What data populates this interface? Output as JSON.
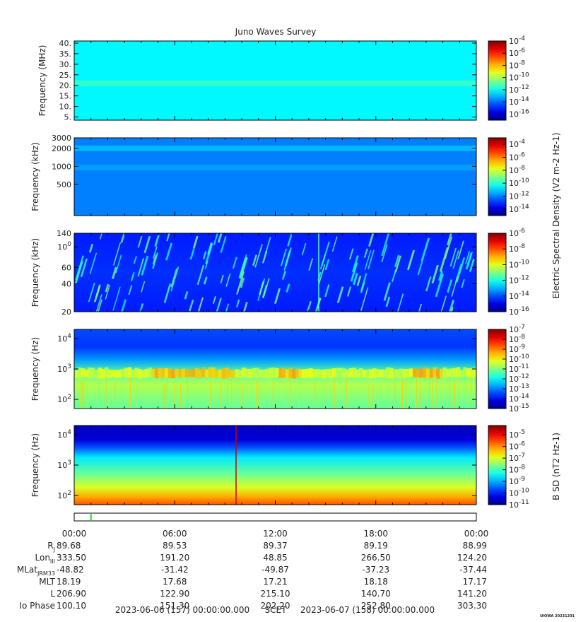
{
  "chart_data": {
    "title": "Juno Waves Survey",
    "type": "heatmap",
    "panels": [
      {
        "id": "hfr-high",
        "ylabel": "Frequency (MHz)",
        "yscale": "linear",
        "ylim": [
          3.5,
          41
        ],
        "yticks": [
          "5.",
          "10.",
          "15.",
          "20.",
          "25.",
          "30.",
          "35.",
          "40."
        ],
        "ytick_values": [
          5,
          10,
          15,
          20,
          25,
          30,
          35,
          40
        ],
        "colorbar": {
          "min_exp": -17,
          "max_exp": -4,
          "labels": [
            "10-4",
            "10-6",
            "10-8",
            "10-10",
            "10-12",
            "10-14",
            "10-16"
          ],
          "label_exps": [
            -4,
            -6,
            -8,
            -10,
            -12,
            -14,
            -16
          ]
        },
        "background_exp": -12.2,
        "bands": [
          {
            "freq": 21,
            "exp": -11.4
          }
        ]
      },
      {
        "id": "hfr-low",
        "ylabel": "Frequency (kHz)",
        "yscale": "log",
        "ylim": [
          150,
          3000
        ],
        "yticks": [
          "3000",
          "2000",
          "1000",
          "500"
        ],
        "ytick_values": [
          3000,
          2000,
          1000,
          500
        ],
        "colorbar": {
          "min_exp": -15,
          "max_exp": -3,
          "labels": [
            "10-4",
            "10-6",
            "10-8",
            "10-10",
            "10-12",
            "10-14"
          ],
          "label_exps": [
            -4,
            -6,
            -8,
            -10,
            -12,
            -14
          ]
        },
        "background_exp": -12.0,
        "bands": [
          {
            "freq": 2000,
            "exp": -11.3
          },
          {
            "freq": 950,
            "exp": -11.6
          }
        ]
      },
      {
        "id": "lfr-high",
        "ylabel": "Frequency (kHz)",
        "yscale": "log",
        "ylim": [
          20,
          140
        ],
        "yticks": [
          "140",
          "100",
          "60",
          "40",
          "20"
        ],
        "ytick_values": [
          140,
          100,
          60,
          40,
          20
        ],
        "colorbar": {
          "min_exp": -16,
          "max_exp": -6,
          "labels": [
            "10-6",
            "10-8",
            "10-10",
            "10-12",
            "10-14",
            "10-16"
          ],
          "label_exps": [
            -6,
            -8,
            -10,
            -12,
            -14,
            -16
          ]
        },
        "background_exp": -14.4,
        "bands": []
      },
      {
        "id": "lfr-low-e",
        "ylabel": "Frequency (Hz)",
        "yscale": "log",
        "ylim": [
          50,
          20000
        ],
        "yticks": [
          "104",
          "103",
          "102"
        ],
        "ytick_values": [
          10000,
          1000,
          100
        ],
        "colorbar": {
          "min_exp": -15,
          "max_exp": -7,
          "labels": [
            "10-7",
            "10-8",
            "10-9",
            "10-10",
            "10-11",
            "10-12",
            "10-13",
            "10-14",
            "10-15"
          ],
          "label_exps": [
            -7,
            -8,
            -9,
            -10,
            -11,
            -12,
            -13,
            -14,
            -15
          ]
        },
        "background_exp": -11.0,
        "bands": []
      },
      {
        "id": "lfr-low-b",
        "ylabel": "Frequency (Hz)",
        "yscale": "log",
        "ylim": [
          50,
          20000
        ],
        "yticks": [
          "104",
          "103",
          "102"
        ],
        "ytick_values": [
          10000,
          1000,
          100
        ],
        "colorbar": {
          "min_exp": -11,
          "max_exp": -4.2,
          "labels": [
            "10-5",
            "10-6",
            "10-7",
            "10-8",
            "10-9",
            "10-10",
            "10-11"
          ],
          "label_exps": [
            -5,
            -6,
            -7,
            -8,
            -9,
            -10,
            -11
          ]
        },
        "background_exp": -8.0,
        "bands": []
      }
    ],
    "colorbar_titles": {
      "electric": "Electric Spectral Density (V2 m-2 Hz-1)",
      "magnetic": "B SD (nT2 Hz-1)"
    },
    "time_axis": {
      "range_hours": [
        0,
        24
      ],
      "tick_hours": [
        0,
        6,
        12,
        18,
        24
      ],
      "tick_labels": [
        "00:00",
        "06:00",
        "12:00",
        "18:00",
        "00:00"
      ]
    },
    "ephemeris": [
      {
        "label": "RJ",
        "values": [
          "89.68",
          "89.53",
          "89.37",
          "89.19",
          "88.99"
        ]
      },
      {
        "label": "LonIII",
        "values": [
          "333.50",
          "191.20",
          "48.85",
          "266.50",
          "124.20"
        ]
      },
      {
        "label": "MLatJRM33",
        "values": [
          "-48.82",
          "-31.42",
          "-49.87",
          "-37.23",
          "-37.44"
        ]
      },
      {
        "label": "MLT",
        "values": [
          "18.19",
          "17.68",
          "17.21",
          "18.18",
          "17.17"
        ]
      },
      {
        "label": "L",
        "values": [
          "206.90",
          "122.90",
          "215.10",
          "140.70",
          "141.20"
        ]
      },
      {
        "label": "Io Phase",
        "values": [
          "100.10",
          "151.30",
          "202.20",
          "252.80",
          "303.30"
        ]
      }
    ],
    "footer": {
      "start": "2023-06-06 (157) 00:00:00.000",
      "scet": "SCET",
      "end": "2023-06-07 (158) 00:00:00.000"
    },
    "credit": "UIOWA 20231201",
    "status_marker_hour": 1.0
  }
}
